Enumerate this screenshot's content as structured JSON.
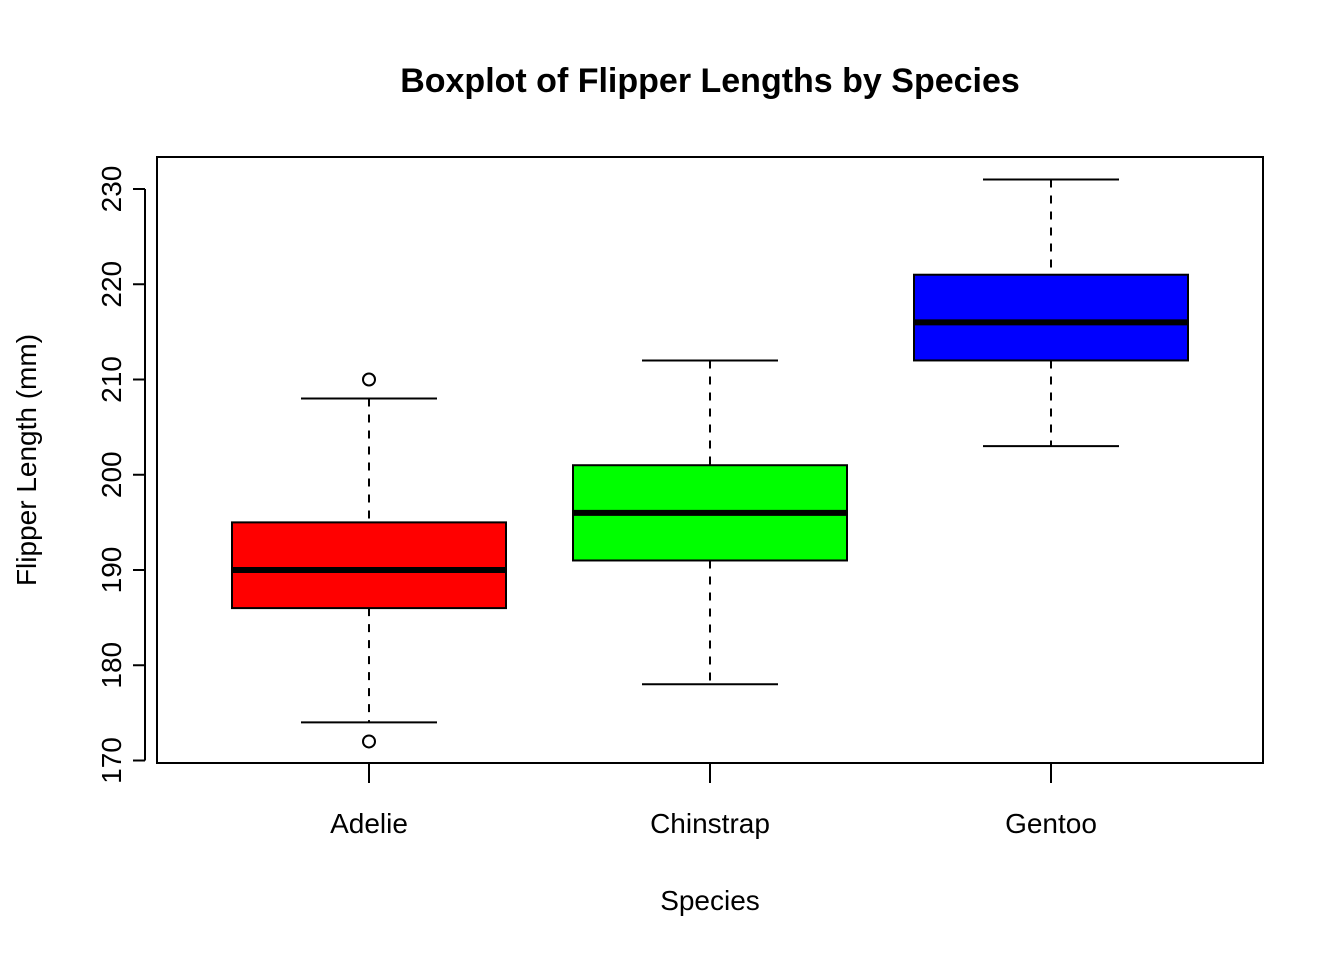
{
  "chart_data": {
    "type": "boxplot",
    "title": "Boxplot of Flipper Lengths by Species",
    "xlabel": "Species",
    "ylabel": "Flipper Length (mm)",
    "ylim": [
      170,
      231
    ],
    "yticks": [
      170,
      180,
      190,
      200,
      210,
      220,
      230
    ],
    "ytick_labels": [
      "170",
      "180",
      "190",
      "200",
      "210",
      "220",
      "230"
    ],
    "categories": [
      "Adelie",
      "Chinstrap",
      "Gentoo"
    ],
    "colors": [
      "#ff0000",
      "#00ff00",
      "#0000ff"
    ],
    "boxes": [
      {
        "category": "Adelie",
        "whisker_low": 174,
        "q1": 186,
        "median": 190,
        "q3": 195,
        "whisker_high": 208,
        "outliers": [
          172,
          210
        ]
      },
      {
        "category": "Chinstrap",
        "whisker_low": 178,
        "q1": 191,
        "median": 196,
        "q3": 201,
        "whisker_high": 212,
        "outliers": []
      },
      {
        "category": "Gentoo",
        "whisker_low": 203,
        "q1": 212,
        "median": 216,
        "q3": 221,
        "whisker_high": 231,
        "outliers": []
      }
    ],
    "grid": false,
    "legend": "none"
  }
}
